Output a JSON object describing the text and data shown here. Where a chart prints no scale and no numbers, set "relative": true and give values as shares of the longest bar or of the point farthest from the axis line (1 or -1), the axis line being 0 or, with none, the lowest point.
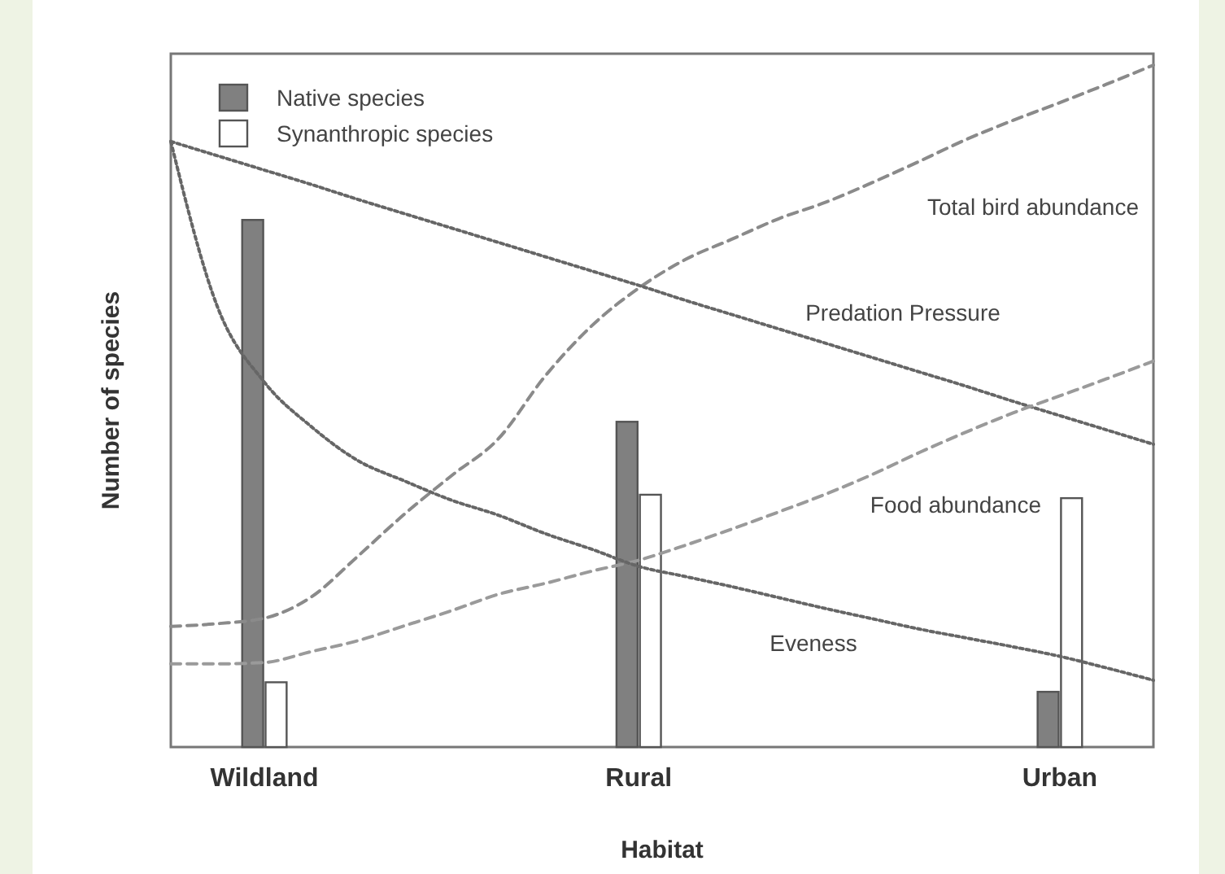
{
  "chart_data": {
    "type": "bar",
    "relative": true,
    "xlabel": "Habitat",
    "ylabel": "Number of species",
    "legend": "top left",
    "categories": [
      null,
      null,
      "Wildland",
      null,
      null,
      null,
      null,
      null,
      null,
      null,
      "Rural",
      null,
      null,
      null,
      null,
      null,
      null,
      null,
      null,
      "Urban",
      null,
      null
    ],
    "series": [
      {
        "name": "Native species",
        "color": "#808080",
        "values": [
          null,
          null,
          0.773,
          null,
          null,
          null,
          null,
          null,
          null,
          null,
          0.477,
          null,
          null,
          null,
          null,
          null,
          null,
          null,
          null,
          0.081,
          null,
          null
        ]
      },
      {
        "name": "Synanthropic species",
        "color": "#ffffff",
        "values": [
          null,
          null,
          0.095,
          null,
          null,
          null,
          null,
          null,
          null,
          null,
          0.37,
          null,
          null,
          null,
          null,
          null,
          null,
          null,
          null,
          0.365,
          null,
          null
        ]
      },
      {
        "name": "Total bird abundance",
        "type": "line",
        "color": "#8a8a8a",
        "line_style": "dashed",
        "values": [
          0.177,
          0.181,
          0.189,
          0.22,
          0.28,
          0.342,
          0.398,
          0.452,
          0.544,
          0.618,
          0.673,
          0.715,
          0.745,
          0.775,
          0.799,
          0.828,
          0.859,
          0.891,
          0.919,
          0.945,
          0.972,
          1
        ]
      },
      {
        "name": "Predation Pressure",
        "type": "line",
        "color": "#666666",
        "line_style": "dotted",
        "values": [
          0.888,
          0.867,
          0.846,
          0.825,
          0.803,
          0.782,
          0.761,
          0.74,
          0.719,
          0.698,
          0.677,
          0.655,
          0.634,
          0.613,
          0.592,
          0.571,
          0.55,
          0.529,
          0.507,
          0.486,
          0.465,
          0.444
        ]
      },
      {
        "name": "Food abundance",
        "type": "line",
        "color": "#9a9a9a",
        "line_style": "dashed",
        "values": [
          0.122,
          0.122,
          0.124,
          0.14,
          0.156,
          0.178,
          0.2,
          0.224,
          0.24,
          0.258,
          0.274,
          0.296,
          0.32,
          0.345,
          0.371,
          0.4,
          0.432,
          0.462,
          0.49,
          0.515,
          0.54,
          0.566
        ]
      },
      {
        "name": "Eveness",
        "type": "line",
        "color": "#666666",
        "line_style": "dotted",
        "values": [
          0.888,
          0.645,
          0.535,
          0.47,
          0.42,
          0.39,
          0.362,
          0.34,
          0.313,
          0.29,
          0.265,
          0.25,
          0.235,
          0.219,
          0.203,
          0.188,
          0.173,
          0.16,
          0.147,
          0.133,
          0.116,
          0.098
        ]
      }
    ]
  }
}
